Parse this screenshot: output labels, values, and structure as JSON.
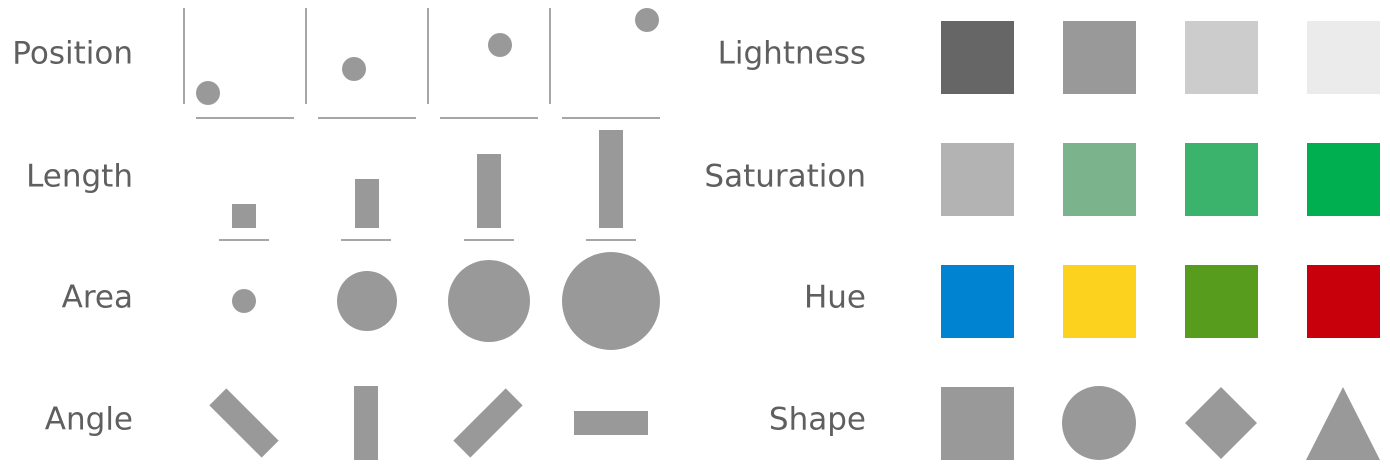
{
  "colors": {
    "mark": "#999999",
    "axis": "#a6a6a6",
    "label": "#5f5f5f"
  },
  "left": {
    "labels": {
      "position": "Position",
      "length": "Length",
      "area": "Area",
      "angle": "Angle"
    }
  },
  "right": {
    "labels": {
      "lightness": "Lightness",
      "saturation": "Saturation",
      "hue": "Hue",
      "shape": "Shape"
    },
    "lightness_colors": [
      "#666666",
      "#999999",
      "#cccccc",
      "#ebebeb"
    ],
    "saturation_colors": [
      "#b3b3b3",
      "#7ab38c",
      "#3cb36c",
      "#00b050"
    ],
    "hue_colors": [
      "#0084d1",
      "#fcd21f",
      "#579c1c",
      "#c8000b"
    ],
    "shapes": [
      "square-icon",
      "circle-icon",
      "diamond-icon",
      "triangle-icon"
    ]
  }
}
